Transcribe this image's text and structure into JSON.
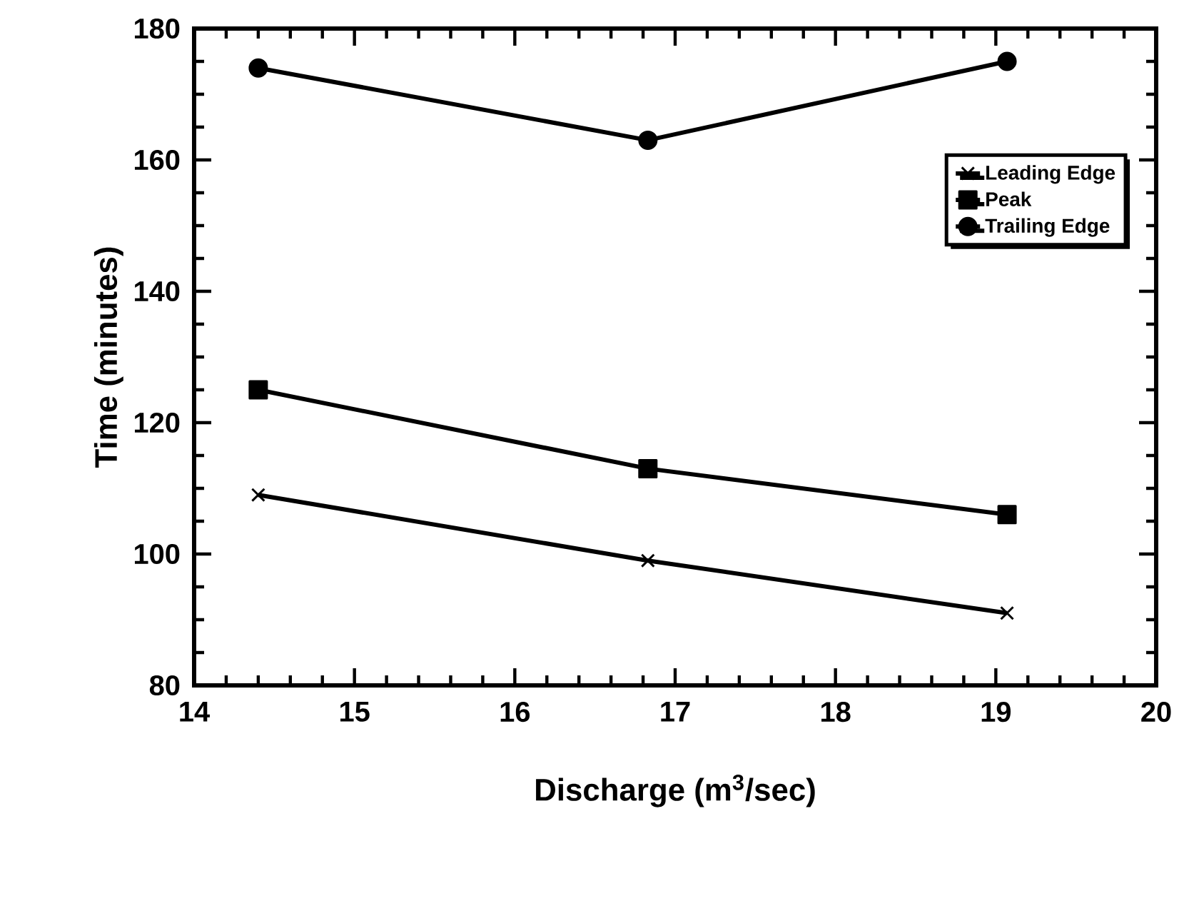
{
  "chart_data": {
    "type": "line",
    "xlabel": "Discharge (m$^{3}$/sec)",
    "ylabel": "Time (minutes)",
    "x": [
      14.4,
      16.83,
      19.07
    ],
    "series": [
      {
        "name": "Leading Edge",
        "color": "#000000",
        "marker": "cross",
        "values": [
          109,
          99,
          91
        ]
      },
      {
        "name": "Peak",
        "color": "#000000",
        "marker": "square",
        "values": [
          125,
          113,
          106
        ]
      },
      {
        "name": "Trailing Edge",
        "color": "#000000",
        "marker": "circle",
        "values": [
          174,
          163,
          175
        ]
      }
    ],
    "xlim": [
      14,
      20
    ],
    "xticks": [
      14,
      15,
      16,
      17,
      18,
      19,
      20
    ],
    "ylim": [
      80,
      180
    ],
    "yticks": [
      80,
      100,
      120,
      140,
      160,
      180
    ],
    "grid": false,
    "legend": "top right",
    "line_style": "solid"
  }
}
